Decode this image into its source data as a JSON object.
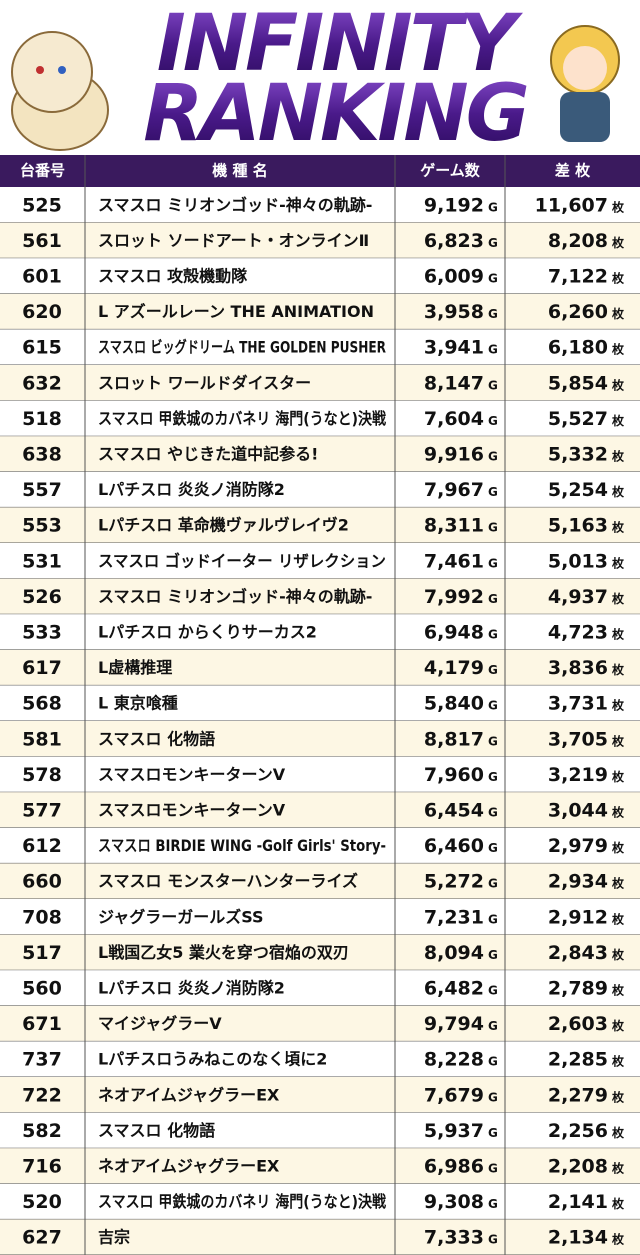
{
  "header": {
    "title_line1": "INFINITY",
    "title_line2": "RANKING"
  },
  "table": {
    "columns": [
      "台番号",
      "機 種 名",
      "ゲーム数",
      "差 枚"
    ],
    "game_unit": "G",
    "diff_unit": "枚",
    "rows": [
      [
        "525",
        "スマスロ ミリオンゴッド-神々の軌跡-",
        "9,192",
        "11,607"
      ],
      [
        "561",
        "スロット ソードアート・オンラインⅡ",
        "6,823",
        "8,208"
      ],
      [
        "601",
        "スマスロ 攻殻機動隊",
        "6,009",
        "7,122"
      ],
      [
        "620",
        "L アズールレーン THE ANIMATION",
        "3,958",
        "6,260"
      ],
      [
        "615",
        "スマスロ ビッグドリーム THE GOLDEN PUSHER",
        "3,941",
        "6,180"
      ],
      [
        "632",
        "スロット ワールドダイスター",
        "8,147",
        "5,854"
      ],
      [
        "518",
        "スマスロ 甲鉄城のカバネリ 海門(うなと)決戦",
        "7,604",
        "5,527"
      ],
      [
        "638",
        "スマスロ やじきた道中記参る!",
        "9,916",
        "5,332"
      ],
      [
        "557",
        "Lパチスロ 炎炎ノ消防隊2",
        "7,967",
        "5,254"
      ],
      [
        "553",
        "Lパチスロ 革命機ヴァルヴレイヴ2",
        "8,311",
        "5,163"
      ],
      [
        "531",
        "スマスロ ゴッドイーター リザレクション",
        "7,461",
        "5,013"
      ],
      [
        "526",
        "スマスロ ミリオンゴッド-神々の軌跡-",
        "7,992",
        "4,937"
      ],
      [
        "533",
        "Lパチスロ からくりサーカス2",
        "6,948",
        "4,723"
      ],
      [
        "617",
        "L虚構推理",
        "4,179",
        "3,836"
      ],
      [
        "568",
        "L 東京喰種",
        "5,840",
        "3,731"
      ],
      [
        "581",
        "スマスロ 化物語",
        "8,817",
        "3,705"
      ],
      [
        "578",
        "スマスロモンキーターンV",
        "7,960",
        "3,219"
      ],
      [
        "577",
        "スマスロモンキーターンV",
        "6,454",
        "3,044"
      ],
      [
        "612",
        "スマスロ BIRDIE WING -Golf Girls' Story-",
        "6,460",
        "2,979"
      ],
      [
        "660",
        "スマスロ モンスターハンターライズ",
        "5,272",
        "2,934"
      ],
      [
        "708",
        "ジャグラーガールズSS",
        "7,231",
        "2,912"
      ],
      [
        "517",
        "L戦国乙女5 業火を穿つ宿焔の双刃",
        "8,094",
        "2,843"
      ],
      [
        "560",
        "Lパチスロ 炎炎ノ消防隊2",
        "6,482",
        "2,789"
      ],
      [
        "671",
        "マイジャグラーV",
        "9,794",
        "2,603"
      ],
      [
        "737",
        "Lパチスロうみねこのなく頃に2",
        "8,228",
        "2,285"
      ],
      [
        "722",
        "ネオアイムジャグラーEX",
        "7,679",
        "2,279"
      ],
      [
        "582",
        "スマスロ 化物語",
        "5,937",
        "2,256"
      ],
      [
        "716",
        "ネオアイムジャグラーEX",
        "6,986",
        "2,208"
      ],
      [
        "520",
        "スマスロ 甲鉄城のカバネリ 海門(うなと)決戦",
        "9,308",
        "2,141"
      ],
      [
        "627",
        "吉宗",
        "7,333",
        "2,134"
      ]
    ]
  }
}
